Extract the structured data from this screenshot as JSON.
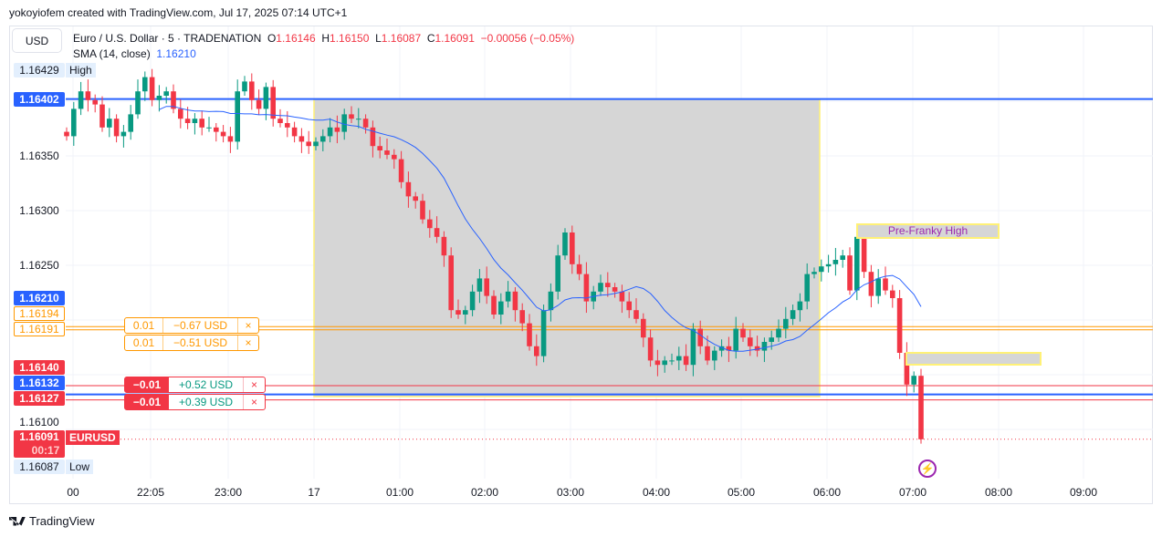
{
  "credit": "yokoyiofem created with TradingView.com, Jul 17, 2025 07:14 UTC+1",
  "currency_button": "USD",
  "legend": {
    "symbol": "Euro / U.S. Dollar · 5 · TRADENATION",
    "o_label": "O",
    "o": "1.16146",
    "h_label": "H",
    "h": "1.16150",
    "l_label": "L",
    "l": "1.16087",
    "c_label": "C",
    "c": "1.16091",
    "change": "−0.00056 (−0.05%)",
    "sma_label": "SMA (14, close)",
    "sma_value": "1.16210"
  },
  "price_ticks": [
    "1.16350",
    "1.16300",
    "1.16250",
    "1.16100"
  ],
  "price_labels": {
    "high_value": "1.16429",
    "high_text": "High",
    "blue_line": "1.16402",
    "sma": "1.16210",
    "orange1": "1.16194",
    "orange2": "1.16191",
    "red1": "1.16140",
    "blue2": "1.16132",
    "red2": "1.16127",
    "last": "1.16091",
    "countdown": "00:17",
    "symbol": "EURUSD",
    "low_value": "1.16087",
    "low_text": "Low"
  },
  "orders": [
    {
      "qty": "0.01",
      "pnl": "−0.67 USD",
      "close": "×",
      "color": "#ff9800"
    },
    {
      "qty": "0.01",
      "pnl": "−0.51 USD",
      "close": "×",
      "color": "#ff9800"
    },
    {
      "qty": "−0.01",
      "pnl": "+0.52 USD",
      "close": "×",
      "color": "#f23645"
    },
    {
      "qty": "−0.01",
      "pnl": "+0.39 USD",
      "close": "×",
      "color": "#f23645"
    }
  ],
  "time_labels": [
    "00",
    "22:05",
    "23:00",
    "17",
    "01:00",
    "02:00",
    "03:00",
    "04:00",
    "05:00",
    "06:00",
    "07:00",
    "08:00",
    "09:00"
  ],
  "annotations": {
    "pre_franky": "Pre-Franky High"
  },
  "footer": "TradingView",
  "colors": {
    "up": "#089981",
    "down": "#f23645",
    "sma": "#2962ff",
    "orange": "#ff9800",
    "box": "#d6d6d6",
    "box_border": "#fff176"
  },
  "chart_data": {
    "type": "candlestick",
    "symbol": "EURUSD",
    "interval": "5",
    "first_open": 1.16372,
    "closes": [
      1.16368,
      1.16393,
      1.16409,
      1.16401,
      1.16397,
      1.16376,
      1.16384,
      1.16368,
      1.16372,
      1.16388,
      1.16409,
      1.16422,
      1.16401,
      1.16405,
      1.16409,
      1.16393,
      1.16384,
      1.1638,
      1.16384,
      1.16376,
      1.16376,
      1.16372,
      1.16368,
      1.16363,
      1.16409,
      1.16418,
      1.16401,
      1.16393,
      1.16413,
      1.16384,
      1.1638,
      1.16376,
      1.16368,
      1.16363,
      1.16359,
      1.16363,
      1.16368,
      1.16376,
      1.16372,
      1.16388,
      1.16384,
      1.16384,
      1.16376,
      1.16359,
      1.16355,
      1.16351,
      1.16347,
      1.16326,
      1.16313,
      1.16309,
      1.16292,
      1.16284,
      1.16276,
      1.16259,
      1.16209,
      1.16205,
      1.16209,
      1.16226,
      1.16238,
      1.16222,
      1.16205,
      1.16217,
      1.16226,
      1.16209,
      1.16197,
      1.16176,
      1.16167,
      1.16209,
      1.16226,
      1.16259,
      1.1628,
      1.16251,
      1.16242,
      1.16217,
      1.16226,
      1.16234,
      1.1623,
      1.16226,
      1.16217,
      1.16209,
      1.16201,
      1.16184,
      1.16163,
      1.16159,
      1.16163,
      1.16163,
      1.16167,
      1.16159,
      1.16192,
      1.16176,
      1.16163,
      1.16172,
      1.16176,
      1.16172,
      1.16192,
      1.16184,
      1.16176,
      1.16172,
      1.1618,
      1.16184,
      1.16192,
      1.16201,
      1.16209,
      1.16217,
      1.16242,
      1.16244,
      1.16249,
      1.16251,
      1.16255,
      1.16259,
      1.16227,
      1.16276,
      1.16244,
      1.16222,
      1.16238,
      1.16227,
      1.1622,
      1.1617,
      1.16141,
      1.16149,
      1.16091
    ],
    "sma_period": 14,
    "hlines": [
      1.16402,
      1.16194,
      1.16191,
      1.1614,
      1.16132,
      1.16127
    ],
    "price_range": [
      1.16065,
      1.16455
    ]
  }
}
